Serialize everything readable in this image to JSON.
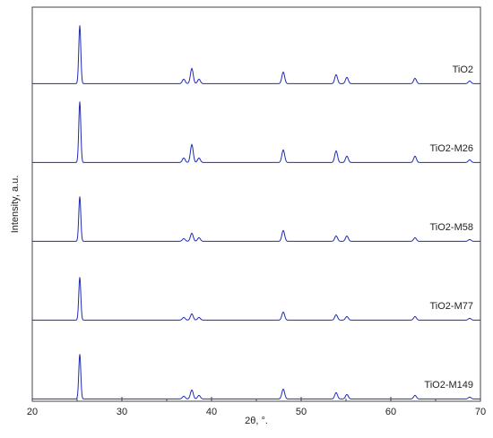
{
  "chart_data": {
    "type": "line",
    "title": "",
    "xlabel": "2θ, °.",
    "ylabel": "Intensity, a.u.",
    "xlim": [
      20,
      70
    ],
    "xticks": [
      20,
      30,
      40,
      50,
      60,
      70
    ],
    "yticks_shown": false,
    "stacked_offset": true,
    "grid": false,
    "line_color": "#1f2bb5",
    "series": [
      {
        "name": "TiO2",
        "peaks": [
          {
            "two_theta": 25.3,
            "intensity": 65
          },
          {
            "two_theta": 36.9,
            "intensity": 5
          },
          {
            "two_theta": 37.8,
            "intensity": 17
          },
          {
            "two_theta": 38.6,
            "intensity": 5
          },
          {
            "two_theta": 48.0,
            "intensity": 13
          },
          {
            "two_theta": 53.9,
            "intensity": 10
          },
          {
            "two_theta": 55.1,
            "intensity": 7
          },
          {
            "two_theta": 62.7,
            "intensity": 6
          },
          {
            "two_theta": 68.8,
            "intensity": 3
          }
        ]
      },
      {
        "name": "TiO2-M26",
        "peaks": [
          {
            "two_theta": 25.3,
            "intensity": 68
          },
          {
            "two_theta": 36.9,
            "intensity": 5
          },
          {
            "two_theta": 37.8,
            "intensity": 20
          },
          {
            "two_theta": 38.6,
            "intensity": 5
          },
          {
            "two_theta": 48.0,
            "intensity": 14
          },
          {
            "two_theta": 53.9,
            "intensity": 13
          },
          {
            "two_theta": 55.1,
            "intensity": 7
          },
          {
            "two_theta": 62.7,
            "intensity": 7
          },
          {
            "two_theta": 68.8,
            "intensity": 3
          }
        ]
      },
      {
        "name": "TiO2-M58",
        "peaks": [
          {
            "two_theta": 25.3,
            "intensity": 50
          },
          {
            "two_theta": 36.9,
            "intensity": 3
          },
          {
            "two_theta": 37.8,
            "intensity": 9
          },
          {
            "two_theta": 38.6,
            "intensity": 4
          },
          {
            "two_theta": 48.0,
            "intensity": 12
          },
          {
            "two_theta": 53.9,
            "intensity": 6
          },
          {
            "two_theta": 55.1,
            "intensity": 6
          },
          {
            "two_theta": 62.7,
            "intensity": 4
          },
          {
            "two_theta": 68.8,
            "intensity": 2
          }
        ]
      },
      {
        "name": "TiO2-M77",
        "peaks": [
          {
            "two_theta": 25.3,
            "intensity": 48
          },
          {
            "two_theta": 36.9,
            "intensity": 3
          },
          {
            "two_theta": 37.8,
            "intensity": 7
          },
          {
            "two_theta": 38.6,
            "intensity": 3
          },
          {
            "two_theta": 48.0,
            "intensity": 9
          },
          {
            "two_theta": 53.9,
            "intensity": 6
          },
          {
            "two_theta": 55.1,
            "intensity": 4
          },
          {
            "two_theta": 62.7,
            "intensity": 4
          },
          {
            "two_theta": 68.8,
            "intensity": 2
          }
        ]
      },
      {
        "name": "TiO2-M149",
        "peaks": [
          {
            "two_theta": 25.3,
            "intensity": 50
          },
          {
            "two_theta": 36.9,
            "intensity": 3
          },
          {
            "two_theta": 37.8,
            "intensity": 10
          },
          {
            "two_theta": 38.6,
            "intensity": 4
          },
          {
            "two_theta": 48.0,
            "intensity": 11
          },
          {
            "two_theta": 53.9,
            "intensity": 7
          },
          {
            "two_theta": 55.1,
            "intensity": 5
          },
          {
            "two_theta": 62.7,
            "intensity": 4
          },
          {
            "two_theta": 68.8,
            "intensity": 2
          }
        ]
      }
    ]
  }
}
